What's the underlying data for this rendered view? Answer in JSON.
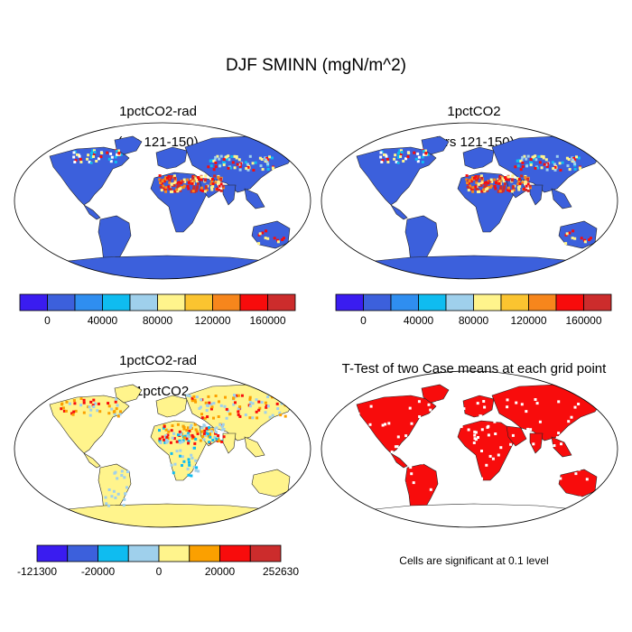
{
  "title": "DJF SMINN (mgN/m^2)",
  "panels": [
    {
      "id": "p1",
      "title_line1": "1pctCO2-rad",
      "title_line2": "(yrs 121-150)"
    },
    {
      "id": "p2",
      "title_line1": "1pctCO2",
      "title_line2": "(yrs 121-150)"
    },
    {
      "id": "p3",
      "title_line1": "1pctCO2-rad",
      "title_line2": "- 1pctCO2"
    },
    {
      "id": "p4",
      "title_line1": "T-Test of two Case means at each grid point",
      "title_line2": ""
    }
  ],
  "colorbars": {
    "abs": {
      "colors": [
        "#3a1cf0",
        "#3c60dc",
        "#2f8ef0",
        "#0fbcf0",
        "#9fd0ec",
        "#fff48c",
        "#fbc430",
        "#f7861c",
        "#f80c0c",
        "#cc2c2c"
      ],
      "ticks": [
        "0",
        "40000",
        "80000",
        "120000",
        "160000"
      ]
    },
    "diff": {
      "colors": [
        "#3a1cf0",
        "#3c60dc",
        "#0fbcf0",
        "#9fd0ec",
        "#fff48c",
        "#fba000",
        "#f80c0c",
        "#cc2c2c"
      ],
      "ticks": [
        "-121300",
        "-20000",
        "0",
        "20000",
        "252630"
      ]
    }
  },
  "note": "Cells are significant at 0.1 level"
}
